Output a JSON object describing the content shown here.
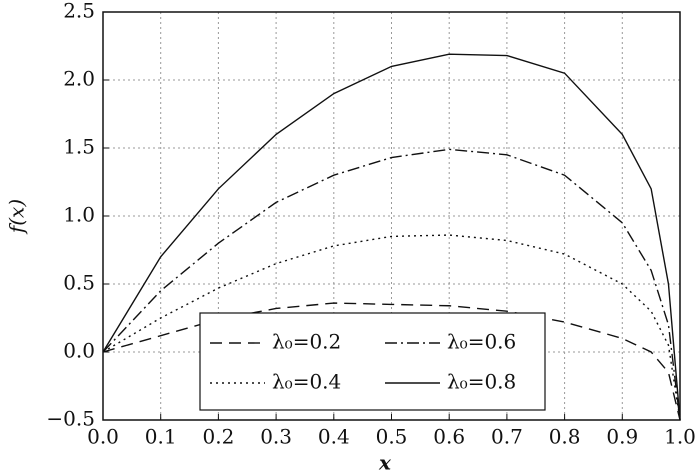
{
  "chart_data": {
    "type": "line",
    "xlabel": "x",
    "ylabel": "f(x)",
    "x": [
      0,
      0.1,
      0.2,
      0.3,
      0.4,
      0.5,
      0.6,
      0.7,
      0.8,
      0.9,
      0.95,
      0.98,
      1.0
    ],
    "series": [
      {
        "name": "λ₀=0.2",
        "color": "#111111",
        "dash": "dashed",
        "values": [
          0,
          0.12,
          0.24,
          0.32,
          0.36,
          0.35,
          0.34,
          0.3,
          0.22,
          0.1,
          0.0,
          -0.15,
          -0.5
        ]
      },
      {
        "name": "λ₀=0.4",
        "color": "#111111",
        "dash": "dotted",
        "values": [
          0,
          0.25,
          0.47,
          0.65,
          0.78,
          0.85,
          0.86,
          0.82,
          0.72,
          0.5,
          0.3,
          0.05,
          -0.5
        ]
      },
      {
        "name": "λ₀=0.6",
        "color": "#111111",
        "dash": "dashdot",
        "values": [
          0,
          0.45,
          0.8,
          1.1,
          1.3,
          1.43,
          1.49,
          1.45,
          1.3,
          0.95,
          0.6,
          0.2,
          -0.5
        ]
      },
      {
        "name": "λ₀=0.8",
        "color": "#111111",
        "dash": "solid",
        "values": [
          0,
          0.7,
          1.2,
          1.6,
          1.9,
          2.1,
          2.19,
          2.18,
          2.05,
          1.6,
          1.2,
          0.5,
          -0.5
        ]
      }
    ],
    "xlim": [
      0,
      1.0
    ],
    "xticks": [
      {
        "value": 0,
        "label": "0.0"
      },
      0.1,
      0.2,
      0.3,
      0.4,
      0.5,
      0.6,
      0.7,
      0.8,
      0.9,
      {
        "value": 1.0,
        "label": "1.0"
      }
    ],
    "ylim": [
      -0.5,
      2.5
    ],
    "yticks": [
      {
        "value": -0.5,
        "label": "−0.5"
      },
      {
        "value": 0,
        "label": "0.0"
      },
      0.5,
      {
        "value": 1.0,
        "label": "1.0"
      },
      1.5,
      {
        "value": 2.0,
        "label": "2.0"
      },
      2.5
    ],
    "grid": true,
    "legend": "lower center"
  }
}
